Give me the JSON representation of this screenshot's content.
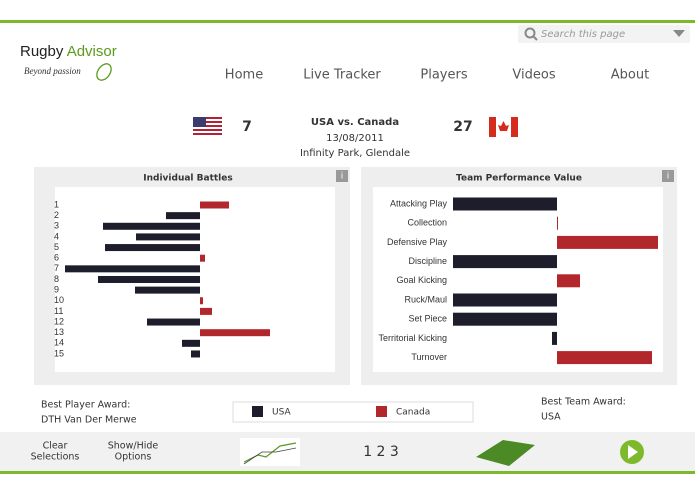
{
  "header": {
    "brand": "Rugby",
    "brand_accent": "Advisor",
    "tagline": "Beyond passion",
    "search_placeholder": "Search this page",
    "nav": [
      "Home",
      "Live Tracker",
      "Players",
      "Videos",
      "About"
    ]
  },
  "match": {
    "home_score": "7",
    "title": "USA vs. Canada",
    "date": "13/08/2011",
    "venue": "Infinity Park, Glendale",
    "away_score": "27"
  },
  "chart_data": [
    {
      "type": "diverging-bar",
      "title": "Individual Battles",
      "categories": [
        "1",
        "2",
        "3",
        "4",
        "5",
        "6",
        "7",
        "8",
        "9",
        "10",
        "11",
        "12",
        "13",
        "14",
        "15"
      ],
      "values": [
        29,
        -34,
        -97,
        -64,
        -95,
        5,
        -135,
        -102,
        -65,
        3,
        12,
        -53,
        70,
        -18,
        -9
      ],
      "negative_color": "#1d1d2c",
      "positive_color": "#b2272c"
    },
    {
      "type": "diverging-bar",
      "title": "Team Performance Value",
      "categories": [
        "Attacking Play",
        "Collection",
        "Defensive Play",
        "Discipline",
        "Goal Kicking",
        "Ruck/Maul",
        "Set Piece",
        "Territorial Kicking",
        "Turnover"
      ],
      "values": [
        -104,
        1,
        101,
        -104,
        23,
        -104,
        -104,
        -5,
        95
      ],
      "negative_color": "#1d1d2c",
      "positive_color": "#b2272c"
    }
  ],
  "awards": {
    "player_label": "Best Player Award:",
    "player": "DTH Van Der Merwe",
    "team_label": "Best Team Award:",
    "team": "USA"
  },
  "legend": [
    {
      "name": "USA",
      "color": "#1d1d2c"
    },
    {
      "name": "Canada",
      "color": "#b2272c"
    }
  ],
  "footer": {
    "clear": [
      "Clear",
      "Selections"
    ],
    "options": [
      "Show/Hide",
      "Options"
    ],
    "pages": "1 2 3"
  }
}
